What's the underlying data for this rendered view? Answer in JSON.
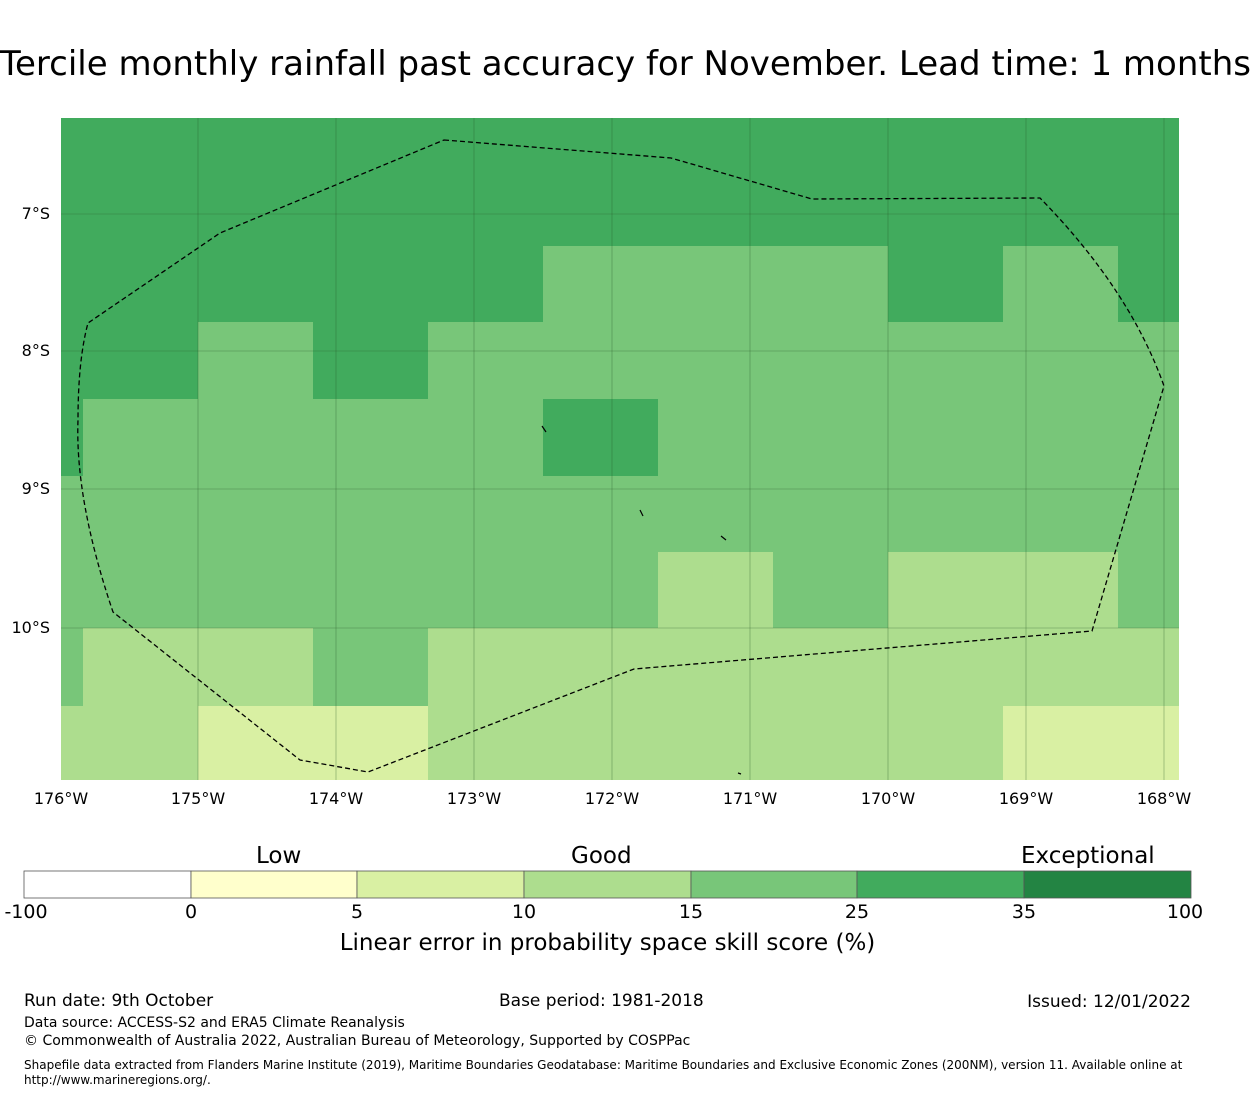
{
  "title": "Tercile monthly rainfall past accuracy for November. Lead time: 1 months",
  "map": {
    "lat_labels": [
      "7°S",
      "8°S",
      "9°S",
      "10°S"
    ],
    "lon_labels": [
      "176°W",
      "175°W",
      "174°W",
      "173°W",
      "172°W",
      "171°W",
      "170°W",
      "169°W",
      "168°W"
    ],
    "boundary": "Tokelau EEZ (dashed)"
  },
  "colorbar": {
    "categories": [
      "Low",
      "Good",
      "Exceptional"
    ],
    "ticks": [
      "-100",
      "0",
      "5",
      "10",
      "15",
      "25",
      "35",
      "100"
    ],
    "colors": [
      "#ffffff",
      "#ffffcc",
      "#d9f0a3",
      "#addd8e",
      "#78c679",
      "#41ab5d",
      "#238443"
    ],
    "label": "Linear error in probability space skill score (%)"
  },
  "footer": {
    "run_date": "Run date: 9th October",
    "base_period": "Base period: 1981-2018",
    "issued": "Issued: 12/01/2022",
    "data_source": "Data source: ACCESS-S2 and ERA5 Climate Reanalysis",
    "copyright": "© Commonwealth of Australia 2022, Australian Bureau of Meteorology, Supported by COSPPac",
    "shapefile": "Shapefile data extracted from Flanders Marine Institute (2019), Maritime Boundaries Geodatabase: Maritime Boundaries and Exclusive Economic Zones (200NM), version 11. Available online at http://www.marineregions.org/."
  }
}
